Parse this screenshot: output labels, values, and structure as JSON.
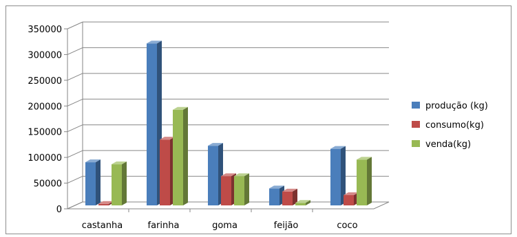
{
  "chart_data": {
    "type": "bar",
    "title": "",
    "xlabel": "",
    "ylabel": "",
    "categories": [
      "castanha",
      "farinha",
      "goma",
      "feijão",
      "coco"
    ],
    "series": [
      {
        "name": "produção (kg)",
        "color": "#4a7ebb",
        "values": [
          84000,
          315000,
          116000,
          33000,
          110000
        ]
      },
      {
        "name": "consumo(kg)",
        "color": "#be4b48",
        "values": [
          3000,
          128000,
          57000,
          27000,
          20000
        ]
      },
      {
        "name": "venda(kg)",
        "color": "#98b954",
        "values": [
          80000,
          186000,
          57000,
          5000,
          89000
        ]
      }
    ],
    "ylim": [
      0,
      350000
    ],
    "yticks": [
      0,
      50000,
      100000,
      150000,
      200000,
      250000,
      300000,
      350000
    ],
    "ytick_labels": [
      "0",
      "50000",
      "100000",
      "150000",
      "200000",
      "250000",
      "300000",
      "350000"
    ],
    "grid": true,
    "legend_position": "right",
    "style": "3d-clustered-column"
  }
}
